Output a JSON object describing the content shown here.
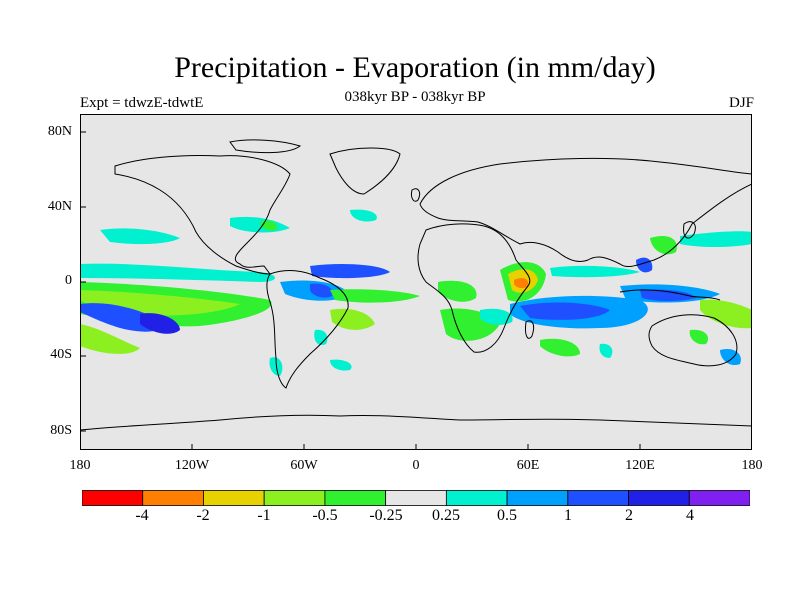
{
  "title": "Precipitation - Evaporation (in mm/day)",
  "subtitle": "038kyr BP - 038kyr BP",
  "left_label": "Expt = tdwzE-tdwtE",
  "right_label": "DJF",
  "lat_ticks": [
    "80N",
    "40N",
    "0",
    "40S",
    "80S"
  ],
  "lon_ticks": [
    "180",
    "120W",
    "60W",
    "0",
    "60E",
    "120E",
    "180"
  ],
  "colorbar": {
    "colors": [
      "#ff0000",
      "#ff8000",
      "#e6d200",
      "#8cf020",
      "#30f030",
      "#e6e6e6",
      "#00f0d0",
      "#00a0ff",
      "#1e50ff",
      "#2020e6",
      "#8020f0"
    ],
    "labels": [
      "-4",
      "-2",
      "-1",
      "-0.5",
      "-0.25",
      "0.25",
      "0.5",
      "1",
      "2",
      "4"
    ]
  },
  "colors": {
    "land_ocean_background": "#e6e6e6",
    "coastline": "#000000"
  }
}
